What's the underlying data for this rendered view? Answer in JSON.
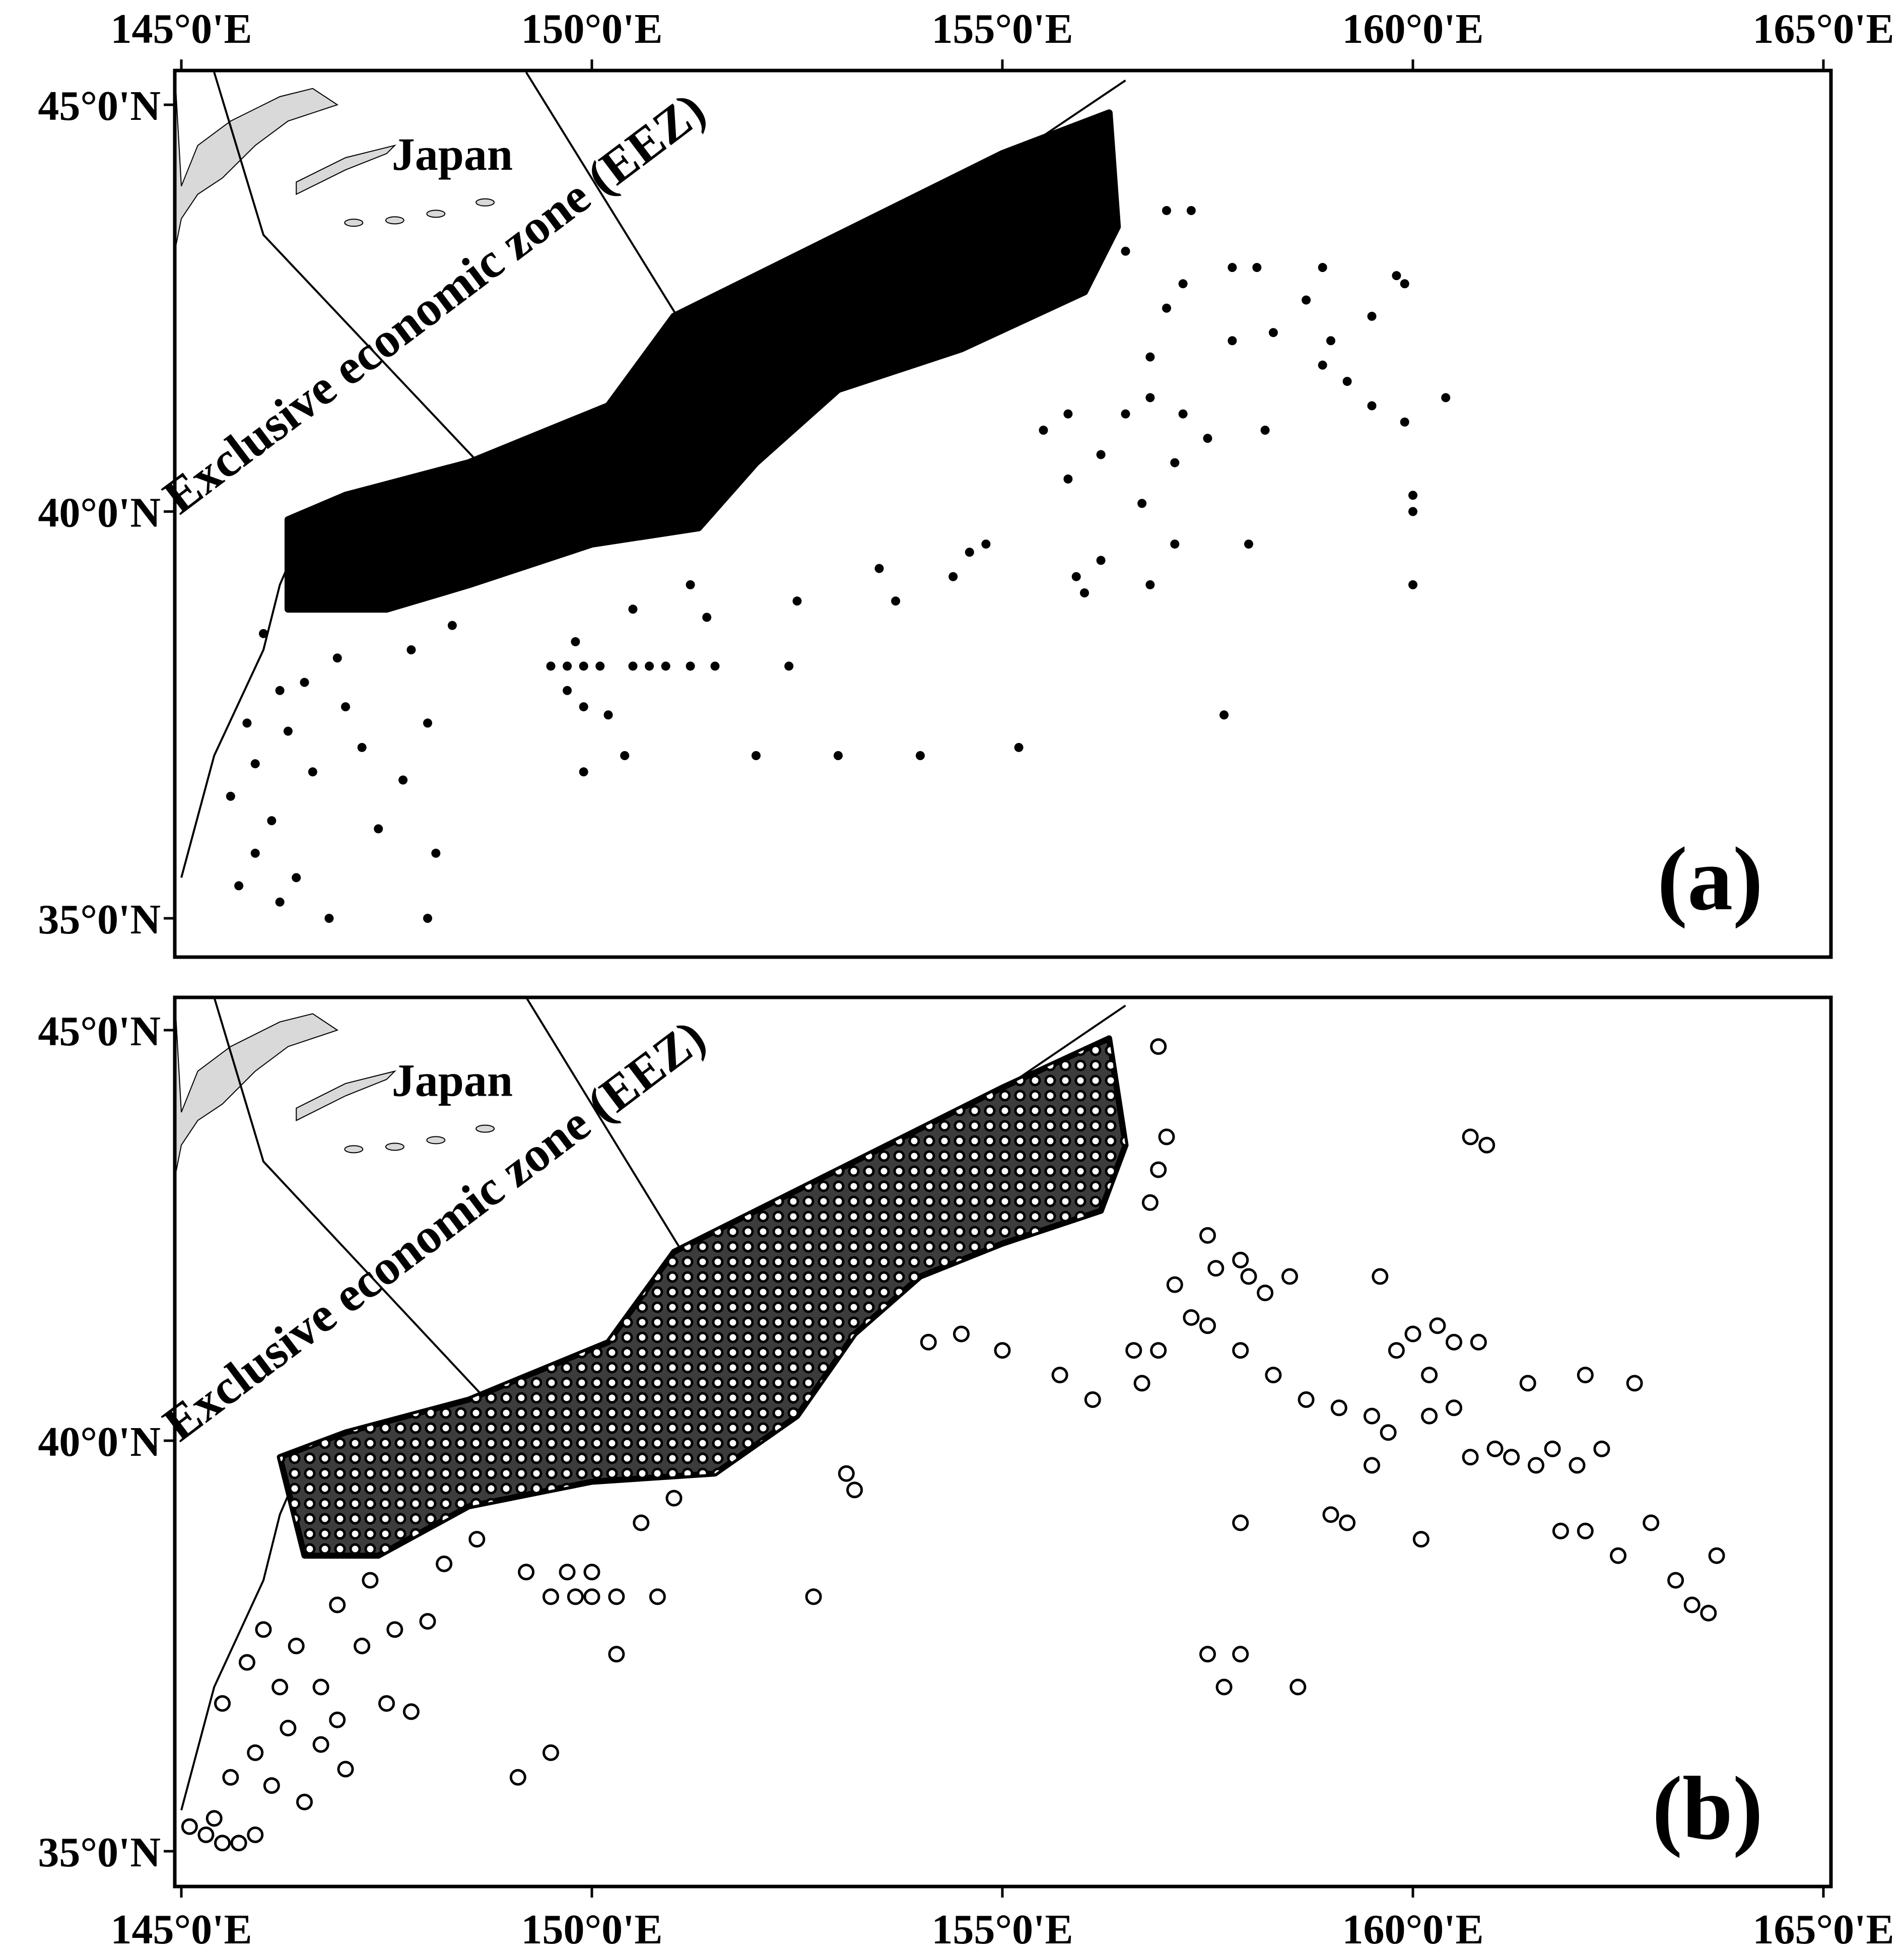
{
  "figure": {
    "x_tick_labels": [
      "145°0'E",
      "150°0'E",
      "155°0'E",
      "160°0'E",
      "165°0'E"
    ],
    "y_tick_labels": [
      "45°0'N",
      "40°0'N",
      "35°0'N"
    ],
    "x_ticks_deg": [
      145,
      150,
      155,
      160,
      165
    ],
    "y_ticks_deg": [
      45,
      40,
      35
    ],
    "lon_range": [
      145,
      165
    ],
    "lat_range": [
      35,
      45
    ],
    "land_label": "Japan",
    "eez_label": "Exclusive economic zone (EEZ)",
    "land_color": "#d9d9d9",
    "marker_color": "#000000",
    "open_marker_fill": "#ffffff",
    "panels": [
      {
        "id": "a",
        "label": "(a)",
        "marker_style": "filled"
      },
      {
        "id": "b",
        "label": "(b)",
        "marker_style": "open"
      }
    ]
  },
  "chart_data": [
    {
      "type": "scatter",
      "panel": "(a)",
      "title": "",
      "xlabel": "",
      "ylabel": "",
      "xlim": [
        145,
        165
      ],
      "ylim": [
        35,
        45
      ],
      "x_ticks": [
        "145°0'E",
        "150°0'E",
        "155°0'E",
        "160°0'E",
        "165°0'E"
      ],
      "y_ticks": [
        "45°0'N",
        "40°0'N",
        "35°0'N"
      ],
      "annotations": [
        "Japan",
        "Exclusive economic zone (EEZ)",
        "(a)"
      ],
      "marker": "filled circle",
      "dense_region": [
        [
          146.3,
          39.9
        ],
        [
          147.0,
          40.2
        ],
        [
          148.5,
          40.6
        ],
        [
          150.2,
          41.3
        ],
        [
          151.0,
          42.4
        ],
        [
          153.0,
          43.4
        ],
        [
          155.0,
          44.4
        ],
        [
          156.3,
          44.9
        ],
        [
          156.4,
          43.5
        ],
        [
          156.0,
          42.7
        ],
        [
          154.5,
          42.0
        ],
        [
          153.0,
          41.5
        ],
        [
          152.0,
          40.6
        ],
        [
          151.3,
          39.8
        ],
        [
          150.0,
          39.6
        ],
        [
          148.5,
          39.1
        ],
        [
          147.5,
          38.8
        ],
        [
          146.3,
          38.8
        ]
      ],
      "scattered_points": [
        [
          146.0,
          38.5
        ],
        [
          146.2,
          37.8
        ],
        [
          145.8,
          37.4
        ],
        [
          145.9,
          36.9
        ],
        [
          146.3,
          37.3
        ],
        [
          146.6,
          36.8
        ],
        [
          145.6,
          36.5
        ],
        [
          146.1,
          36.2
        ],
        [
          145.9,
          35.8
        ],
        [
          146.4,
          35.5
        ],
        [
          145.7,
          35.4
        ],
        [
          146.2,
          35.2
        ],
        [
          146.8,
          35.0
        ],
        [
          146.5,
          37.9
        ],
        [
          147.0,
          37.6
        ],
        [
          147.2,
          37.1
        ],
        [
          147.7,
          36.7
        ],
        [
          148.0,
          37.4
        ],
        [
          147.4,
          36.1
        ],
        [
          148.1,
          35.8
        ],
        [
          148.0,
          35.0
        ],
        [
          146.9,
          38.2
        ],
        [
          147.8,
          38.3
        ],
        [
          148.3,
          38.6
        ],
        [
          149.5,
          38.1
        ],
        [
          149.7,
          38.1
        ],
        [
          149.9,
          38.1
        ],
        [
          150.1,
          38.1
        ],
        [
          150.5,
          38.1
        ],
        [
          150.7,
          38.1
        ],
        [
          150.9,
          38.1
        ],
        [
          151.2,
          38.1
        ],
        [
          151.5,
          38.1
        ],
        [
          152.4,
          38.1
        ],
        [
          149.8,
          38.4
        ],
        [
          149.7,
          37.8
        ],
        [
          149.9,
          37.6
        ],
        [
          150.2,
          37.5
        ],
        [
          150.4,
          37.0
        ],
        [
          149.9,
          36.8
        ],
        [
          150.5,
          38.8
        ],
        [
          151.2,
          39.1
        ],
        [
          151.4,
          38.7
        ],
        [
          152.5,
          38.9
        ],
        [
          152.0,
          37.0
        ],
        [
          153.0,
          37.0
        ],
        [
          154.0,
          37.0
        ],
        [
          155.2,
          37.1
        ],
        [
          157.7,
          37.5
        ],
        [
          153.7,
          38.9
        ],
        [
          153.5,
          39.3
        ],
        [
          154.6,
          39.5
        ],
        [
          154.4,
          39.2
        ],
        [
          154.8,
          39.6
        ],
        [
          155.9,
          39.2
        ],
        [
          156.2,
          39.4
        ],
        [
          156.8,
          39.1
        ],
        [
          156.0,
          39.0
        ],
        [
          157.1,
          39.6
        ],
        [
          158.0,
          39.6
        ],
        [
          156.7,
          40.1
        ],
        [
          157.1,
          40.6
        ],
        [
          156.2,
          40.7
        ],
        [
          155.8,
          40.4
        ],
        [
          155.5,
          41.0
        ],
        [
          155.8,
          41.2
        ],
        [
          156.5,
          41.2
        ],
        [
          156.8,
          41.4
        ],
        [
          157.2,
          41.2
        ],
        [
          157.5,
          40.9
        ],
        [
          158.2,
          41.0
        ],
        [
          159.5,
          41.3
        ],
        [
          159.9,
          41.1
        ],
        [
          157.8,
          42.1
        ],
        [
          158.3,
          42.2
        ],
        [
          158.7,
          42.6
        ],
        [
          159.0,
          42.1
        ],
        [
          159.5,
          42.4
        ],
        [
          159.9,
          42.8
        ],
        [
          160.0,
          40.2
        ],
        [
          160.0,
          40.0
        ],
        [
          160.0,
          39.1
        ],
        [
          160.4,
          41.4
        ],
        [
          158.9,
          41.8
        ],
        [
          159.2,
          41.6
        ],
        [
          157.8,
          43.0
        ],
        [
          158.1,
          43.0
        ],
        [
          158.9,
          43.0
        ],
        [
          159.8,
          42.9
        ],
        [
          157.0,
          43.7
        ],
        [
          157.3,
          43.7
        ],
        [
          156.5,
          43.2
        ],
        [
          157.0,
          42.5
        ],
        [
          156.8,
          41.9
        ],
        [
          157.2,
          42.8
        ]
      ]
    },
    {
      "type": "scatter",
      "panel": "(b)",
      "title": "",
      "xlabel": "",
      "ylabel": "",
      "xlim": [
        145,
        165
      ],
      "ylim": [
        35,
        45
      ],
      "x_ticks": [
        "145°0'E",
        "150°0'E",
        "155°0'E",
        "160°0'E",
        "165°0'E"
      ],
      "y_ticks": [
        "45°0'N",
        "40°0'N",
        "35°0'N"
      ],
      "annotations": [
        "Japan",
        "Exclusive economic zone (EEZ)",
        "(b)"
      ],
      "marker": "open circle",
      "dense_region": [
        [
          146.2,
          39.8
        ],
        [
          147.0,
          40.1
        ],
        [
          148.5,
          40.5
        ],
        [
          150.2,
          41.2
        ],
        [
          151.0,
          42.3
        ],
        [
          153.0,
          43.3
        ],
        [
          155.0,
          44.3
        ],
        [
          156.3,
          44.9
        ],
        [
          156.5,
          43.6
        ],
        [
          156.2,
          42.8
        ],
        [
          155.0,
          42.4
        ],
        [
          154.0,
          42.0
        ],
        [
          153.2,
          41.3
        ],
        [
          152.5,
          40.3
        ],
        [
          151.5,
          39.6
        ],
        [
          150.0,
          39.5
        ],
        [
          148.5,
          39.2
        ],
        [
          147.4,
          38.6
        ],
        [
          146.5,
          38.6
        ]
      ],
      "scattered_points": [
        [
          145.1,
          35.3
        ],
        [
          145.3,
          35.2
        ],
        [
          145.5,
          35.1
        ],
        [
          145.7,
          35.1
        ],
        [
          145.9,
          35.2
        ],
        [
          145.4,
          35.4
        ],
        [
          145.6,
          35.9
        ],
        [
          145.9,
          36.2
        ],
        [
          146.1,
          35.8
        ],
        [
          146.3,
          36.5
        ],
        [
          146.5,
          35.6
        ],
        [
          146.7,
          36.3
        ],
        [
          145.5,
          36.8
        ],
        [
          145.8,
          37.3
        ],
        [
          146.2,
          37.0
        ],
        [
          146.0,
          37.7
        ],
        [
          146.4,
          37.5
        ],
        [
          146.7,
          37.0
        ],
        [
          147.0,
          36.0
        ],
        [
          146.9,
          36.6
        ],
        [
          147.5,
          36.8
        ],
        [
          147.8,
          36.7
        ],
        [
          147.2,
          37.5
        ],
        [
          147.6,
          37.7
        ],
        [
          148.0,
          37.8
        ],
        [
          146.9,
          38.0
        ],
        [
          147.3,
          38.3
        ],
        [
          148.2,
          38.5
        ],
        [
          148.6,
          38.8
        ],
        [
          149.2,
          38.4
        ],
        [
          149.5,
          38.1
        ],
        [
          149.8,
          38.1
        ],
        [
          150.0,
          38.1
        ],
        [
          150.3,
          38.1
        ],
        [
          150.8,
          38.1
        ],
        [
          149.7,
          38.4
        ],
        [
          150.0,
          38.4
        ],
        [
          150.6,
          39.0
        ],
        [
          150.3,
          37.4
        ],
        [
          149.1,
          35.9
        ],
        [
          149.5,
          36.2
        ],
        [
          151.0,
          39.3
        ],
        [
          152.7,
          38.1
        ],
        [
          153.1,
          39.6
        ],
        [
          153.2,
          39.4
        ],
        [
          154.1,
          41.2
        ],
        [
          154.5,
          41.3
        ],
        [
          155.0,
          41.1
        ],
        [
          155.7,
          40.8
        ],
        [
          156.1,
          40.5
        ],
        [
          156.6,
          41.1
        ],
        [
          156.9,
          41.1
        ],
        [
          156.7,
          40.7
        ],
        [
          157.3,
          41.5
        ],
        [
          157.5,
          41.4
        ],
        [
          157.1,
          41.9
        ],
        [
          157.6,
          42.1
        ],
        [
          158.0,
          42.0
        ],
        [
          158.5,
          42.0
        ],
        [
          158.2,
          41.8
        ],
        [
          157.9,
          41.1
        ],
        [
          158.3,
          40.8
        ],
        [
          158.7,
          40.5
        ],
        [
          159.1,
          40.4
        ],
        [
          159.5,
          40.3
        ],
        [
          159.7,
          40.1
        ],
        [
          159.5,
          39.7
        ],
        [
          159.6,
          42.0
        ],
        [
          159.8,
          41.1
        ],
        [
          160.0,
          41.3
        ],
        [
          160.2,
          40.8
        ],
        [
          160.2,
          40.3
        ],
        [
          160.5,
          40.4
        ],
        [
          160.3,
          41.4
        ],
        [
          160.5,
          41.2
        ],
        [
          160.8,
          41.2
        ],
        [
          160.7,
          39.8
        ],
        [
          161.0,
          39.9
        ],
        [
          161.2,
          39.8
        ],
        [
          161.5,
          39.7
        ],
        [
          161.7,
          39.9
        ],
        [
          162.0,
          39.7
        ],
        [
          162.3,
          39.9
        ],
        [
          162.1,
          38.9
        ],
        [
          161.8,
          38.9
        ],
        [
          162.5,
          38.6
        ],
        [
          162.9,
          39.0
        ],
        [
          163.2,
          38.3
        ],
        [
          163.4,
          38.0
        ],
        [
          163.6,
          37.9
        ],
        [
          163.7,
          38.6
        ],
        [
          159.0,
          39.1
        ],
        [
          159.2,
          39.0
        ],
        [
          157.9,
          39.0
        ],
        [
          157.5,
          37.4
        ],
        [
          157.9,
          37.4
        ],
        [
          157.7,
          37.0
        ],
        [
          158.6,
          37.0
        ],
        [
          160.1,
          38.8
        ],
        [
          162.1,
          40.8
        ],
        [
          162.7,
          40.7
        ],
        [
          161.4,
          40.7
        ],
        [
          156.9,
          44.8
        ],
        [
          160.7,
          43.7
        ],
        [
          160.9,
          43.6
        ],
        [
          157.0,
          43.7
        ],
        [
          156.9,
          43.3
        ],
        [
          157.5,
          42.5
        ],
        [
          157.9,
          42.2
        ],
        [
          156.8,
          42.9
        ]
      ]
    }
  ]
}
